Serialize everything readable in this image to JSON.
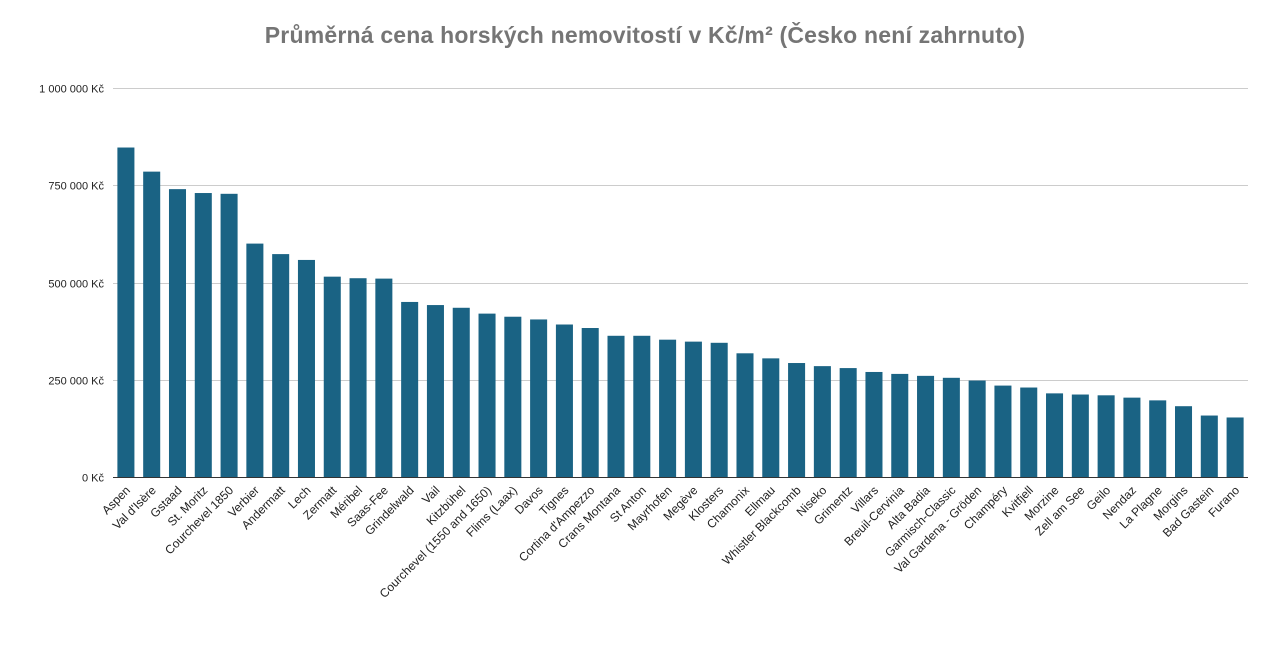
{
  "chart_data": {
    "type": "bar",
    "title": "Průměrná cena horských nemovitostí v Kč/m² (Česko není zahrnuto)",
    "xlabel": "",
    "ylabel": "",
    "ylim": [
      0,
      1000000
    ],
    "yticks": [
      0,
      250000,
      500000,
      750000,
      1000000
    ],
    "ytick_labels": [
      "0 Kč",
      "250 000 Kč",
      "500 000 Kč",
      "750 000 Kč",
      "1 000 000 Kč"
    ],
    "grid": true,
    "bar_color": "#1a6384",
    "categories": [
      "Aspen",
      "Val d'Isère",
      "Gstaad",
      "St. Moritz",
      "Courchevel 1850",
      "Verbier",
      "Andermatt",
      "Lech",
      "Zermatt",
      "Méribel",
      "Saas-Fee",
      "Grindelwald",
      "Vail",
      "Kitzbühel",
      "Courchevel (1550 and 1650)",
      "Flims (Laax)",
      "Davos",
      "Tignes",
      "Cortina d'Ampezzo",
      "Crans Montana",
      "St Anton",
      "Mayrhofen",
      "Megève",
      "Klosters",
      "Chamonix",
      "Ellmau",
      "Whistler Blackcomb",
      "Niseko",
      "Grimentz",
      "Villars",
      "Breuil-Cervinia",
      "Alta Badia",
      "Garmisch-Classic",
      "Val Gardena - Gröden",
      "Champéry",
      "Kvitfjell",
      "Morzine",
      "Zell am See",
      "Geilo",
      "Nendaz",
      "La Plagne",
      "Morgins",
      "Bad Gastein",
      "Furano"
    ],
    "values": [
      847000,
      785000,
      740000,
      730000,
      728000,
      600000,
      573000,
      558000,
      515000,
      511000,
      510000,
      450000,
      442000,
      435000,
      420000,
      412000,
      405000,
      392000,
      383000,
      363000,
      363000,
      353000,
      348000,
      345000,
      318000,
      305000,
      293000,
      285000,
      280000,
      270000,
      265000,
      260000,
      255000,
      248000,
      235000,
      230000,
      215000,
      212000,
      210000,
      204000,
      197000,
      182000,
      158000,
      153000
    ]
  }
}
